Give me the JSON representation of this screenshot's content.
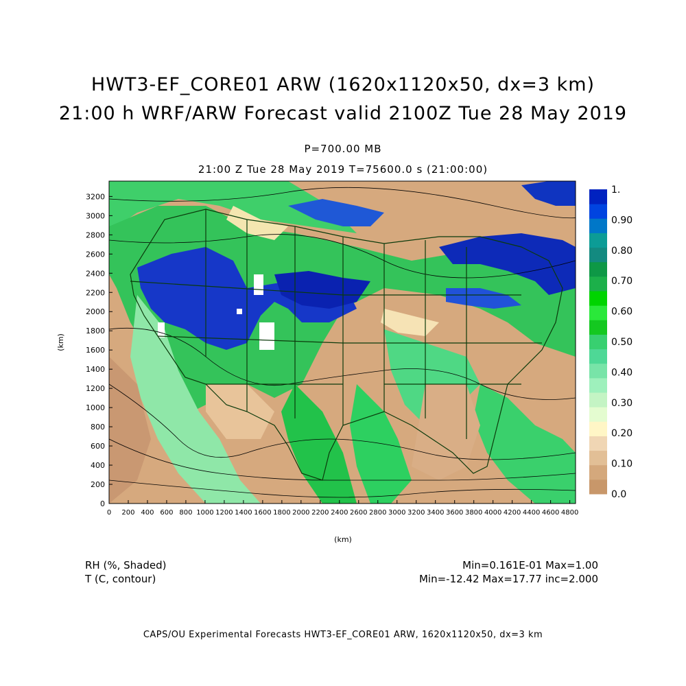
{
  "title_line1": "HWT3-EF_CORE01 ARW (1620x1120x50, dx=3 km)",
  "title_line2": "21:00 h WRF/ARW Forecast valid 2100Z Tue 28 May 2019",
  "subtitle_pressure": "P=700.00 MB",
  "subtitle_time": "21:00 Z Tue 28 May 2019    T=75600.0 s (21:00:00)",
  "axes": {
    "x_label": "(km)",
    "y_label": "(km)",
    "x_ticks": [
      0,
      200,
      400,
      600,
      800,
      1000,
      1200,
      1400,
      1600,
      1800,
      2000,
      2200,
      2400,
      2600,
      2800,
      3000,
      3200,
      3400,
      3600,
      3800,
      4000,
      4200,
      4400,
      4600,
      4800
    ],
    "y_ticks": [
      0,
      200,
      400,
      600,
      800,
      1000,
      1200,
      1400,
      1600,
      1800,
      2000,
      2200,
      2400,
      2600,
      2800,
      3000,
      3200
    ],
    "x_range": [
      0,
      4860
    ],
    "y_range": [
      0,
      3360
    ]
  },
  "colorbar": {
    "labels": [
      "0.0",
      "0.10",
      "0.20",
      "0.30",
      "0.40",
      "0.50",
      "0.60",
      "0.70",
      "0.80",
      "0.90",
      "1."
    ],
    "colors": [
      "#c8976a",
      "#d4a87c",
      "#e2bf96",
      "#f0d6b4",
      "#fff6c6",
      "#e4fcd0",
      "#c4f4c4",
      "#9ef0bc",
      "#78e4a8",
      "#4ed896",
      "#38d070",
      "#14c820",
      "#2ae83a",
      "#00d400",
      "#1cb04a",
      "#0e9846",
      "#138a80",
      "#0c9c96",
      "#0077c8",
      "#0044e0",
      "#0022c0"
    ]
  },
  "legend_left": {
    "line1": "RH (%, Shaded)",
    "line2": "T (C, contour)"
  },
  "legend_right": {
    "line1": "Min=0.161E-01 Max=1.00",
    "line2": "Min=-12.42 Max=17.77 inc=2.000"
  },
  "footer": "CAPS/OU Experimental Forecasts   HWT3-EF_CORE01 ARW, 1620x1120x50, dx=3 km"
}
